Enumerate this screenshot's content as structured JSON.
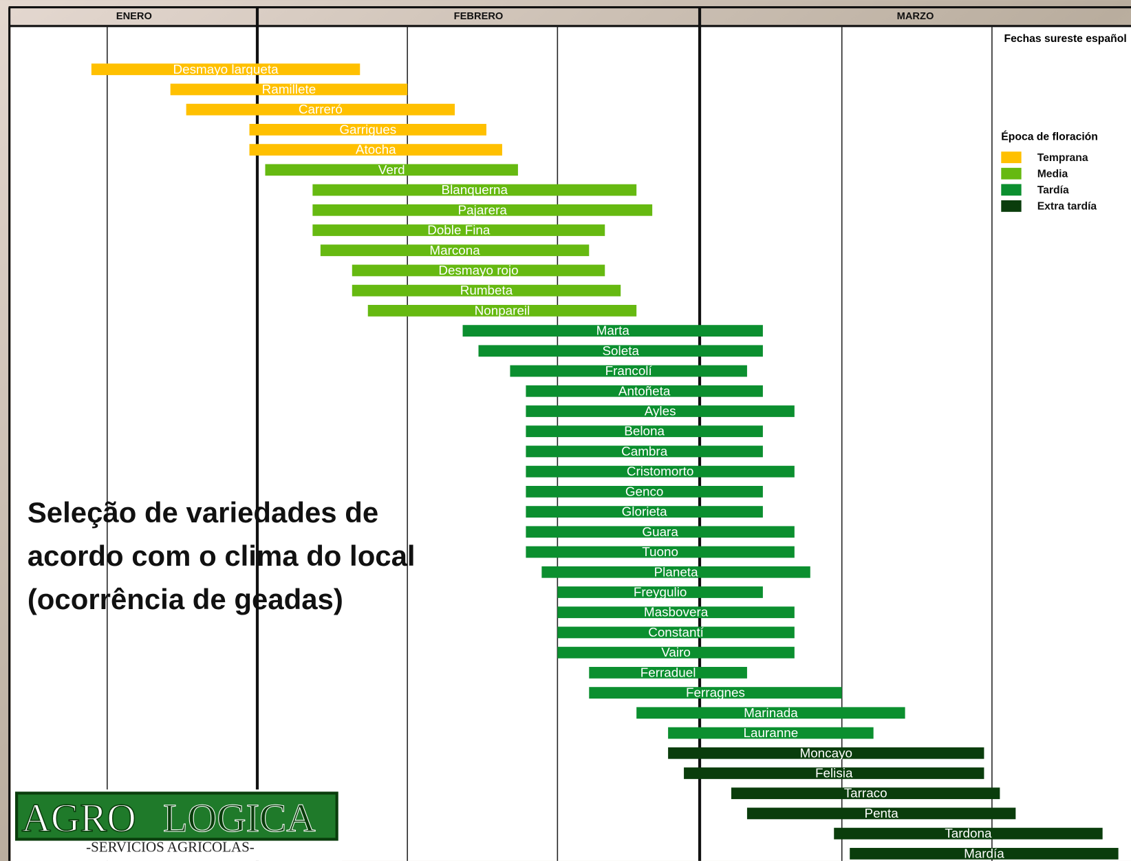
{
  "chart_data": {
    "type": "gantt",
    "note": "Fechas sureste español",
    "months": [
      "ENERO",
      "FEBRERO",
      "MARZO"
    ],
    "month_lines": [
      31,
      59
    ],
    "grid_lines": [
      21.5,
      40.5,
      50,
      68,
      77.5
    ],
    "xlim": [
      15.4,
      86.3
    ],
    "legend_title": "Época de floración",
    "series": [
      {
        "name": "Temprana",
        "color": "#ffc000",
        "categories": [
          "Desmayo largueta",
          "Ramillete",
          "Carreró",
          "Garrigues",
          "Atocha"
        ],
        "start": [
          20.5,
          25.5,
          26.5,
          30.5,
          30.5
        ],
        "end": [
          37.5,
          40.5,
          43.5,
          45.5,
          46.5
        ]
      },
      {
        "name": "Media",
        "color": "#66b911",
        "categories": [
          "Verd",
          "Blanquerna",
          "Pajarera",
          "Doble Fina",
          "Marcona",
          "Desmayo rojo",
          "Rumbeta",
          "Nonpareil"
        ],
        "start": [
          31.5,
          34.5,
          34.5,
          34.5,
          35,
          37,
          37,
          38
        ],
        "end": [
          47.5,
          55,
          56,
          53,
          52,
          53,
          54,
          55
        ]
      },
      {
        "name": "Tardía",
        "color": "#0b8f2f",
        "categories": [
          "Marta",
          "Soleta",
          "Francolí",
          "Antoñeta",
          "Ayles",
          "Belona",
          "Cambra",
          "Cristomorto",
          "Genco",
          "Glorieta",
          "Guara",
          "Tuono",
          "Planeta",
          "Freygulio",
          "Masbovera",
          "Constantí",
          "Vairo",
          "Ferraduel",
          "Ferragnes",
          "Marinada",
          "Lauranne"
        ],
        "start": [
          44,
          45,
          47,
          48,
          48,
          48,
          48,
          48,
          48,
          48,
          48,
          48,
          49,
          50,
          50,
          50,
          50,
          52,
          52,
          55,
          57
        ],
        "end": [
          63,
          63,
          62,
          63,
          65,
          63,
          63,
          65,
          63,
          63,
          65,
          65,
          66,
          63,
          65,
          65,
          65,
          62,
          68,
          72,
          70
        ]
      },
      {
        "name": "Extra tardía",
        "color": "#0a3d0c",
        "categories": [
          "Moncayo",
          "Felisia",
          "Tarraco",
          "Penta",
          "Tardona",
          "Mardía"
        ],
        "start": [
          57,
          58,
          61,
          62,
          67.5,
          68.5
        ],
        "end": [
          77,
          77,
          78,
          79,
          84.5,
          85.5
        ]
      }
    ]
  },
  "overlay_text": [
    "Seleção de variedades de",
    "acordo com o clima do local",
    "(ocorrência de geadas)"
  ],
  "logo": {
    "part1": "AGRO",
    "part2": "LOGICA",
    "tagline": "-SERVICIOS AGRICOLAS-"
  }
}
